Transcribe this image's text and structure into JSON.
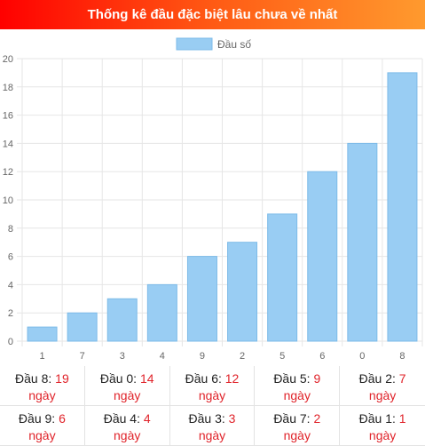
{
  "header": {
    "title": "Thống kê đầu đặc biệt lâu chưa về nhất"
  },
  "chart_data": {
    "type": "bar",
    "categories": [
      "1",
      "7",
      "3",
      "4",
      "9",
      "2",
      "5",
      "6",
      "0",
      "8"
    ],
    "series": [
      {
        "name": "Đầu số",
        "values": [
          1,
          2,
          3,
          4,
          6,
          7,
          9,
          12,
          14,
          19
        ],
        "color": "#99cdf3"
      }
    ],
    "title": "",
    "xlabel": "",
    "ylabel": "",
    "ylim": [
      0,
      20
    ],
    "yticks": [
      0,
      2,
      4,
      6,
      8,
      10,
      12,
      14,
      16,
      18,
      20
    ],
    "grid": true,
    "legend": "top-center"
  },
  "stats": [
    {
      "label": "Đầu 8:",
      "value": "19",
      "unit": "ngày"
    },
    {
      "label": "Đầu 0:",
      "value": "14",
      "unit": "ngày"
    },
    {
      "label": "Đầu 6:",
      "value": "12",
      "unit": "ngày"
    },
    {
      "label": "Đầu 5:",
      "value": "9",
      "unit": "ngày"
    },
    {
      "label": "Đầu 2:",
      "value": "7",
      "unit": "ngày"
    },
    {
      "label": "Đầu 9:",
      "value": "6",
      "unit": "ngày"
    },
    {
      "label": "Đầu 4:",
      "value": "4",
      "unit": "ngày"
    },
    {
      "label": "Đầu 3:",
      "value": "3",
      "unit": "ngày"
    },
    {
      "label": "Đầu 7:",
      "value": "2",
      "unit": "ngày"
    },
    {
      "label": "Đầu 1:",
      "value": "1",
      "unit": "ngày"
    }
  ],
  "colors": {
    "accent_text": "#e0232a",
    "bar": "#99cdf3",
    "bar_border": "#7dbbe8"
  }
}
